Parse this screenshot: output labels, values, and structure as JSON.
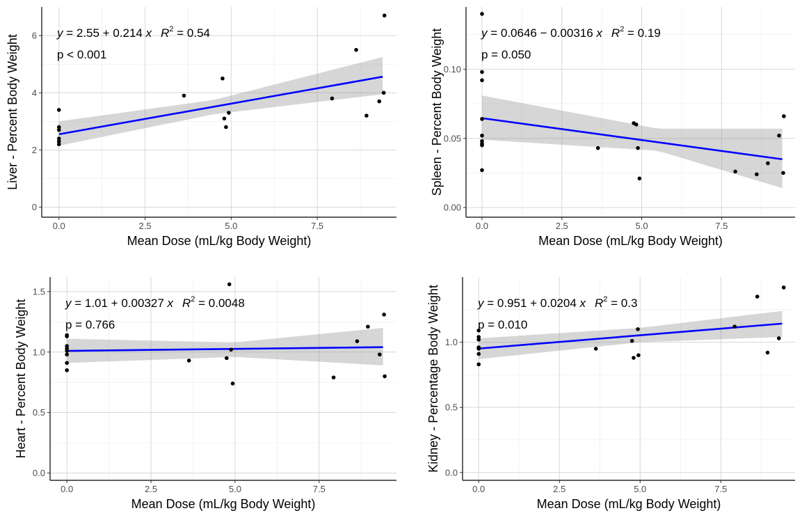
{
  "chart_data": [
    {
      "type": "scatter",
      "xlabel": "Mean Dose (mL/kg Body Weight)",
      "ylabel": "Liver - Percent Body Weight",
      "xlim": [
        -0.5,
        9.8
      ],
      "ylim": [
        -0.35,
        7.0
      ],
      "xticks": [
        0,
        2.5,
        5,
        7.5
      ],
      "xtick_labels": [
        "0.0",
        "2.5",
        "5.0",
        "7.5"
      ],
      "yticks": [
        0,
        2,
        4,
        6
      ],
      "ytick_labels": [
        "0",
        "2",
        "4",
        "6"
      ],
      "grid": true,
      "equation": {
        "y": "y",
        "mid": " = 2.55 + 0.214 ",
        "x": "x",
        "r2": "R",
        "sup": "2",
        "r2val": " = 0.54"
      },
      "pvalue": "p < 0.001",
      "fit": {
        "intercept": 2.55,
        "slope": 0.214
      },
      "ci_band": {
        "x": [
          0,
          4.5,
          9.4
        ],
        "lower": [
          2.15,
          3.25,
          3.95
        ],
        "upper": [
          3.0,
          3.75,
          5.25
        ]
      },
      "points": [
        {
          "x": 0,
          "y": 3.4
        },
        {
          "x": 0,
          "y": 2.8
        },
        {
          "x": 0,
          "y": 2.7
        },
        {
          "x": 0,
          "y": 2.4
        },
        {
          "x": 0,
          "y": 2.3
        },
        {
          "x": 0,
          "y": 2.2
        },
        {
          "x": 3.63,
          "y": 3.9
        },
        {
          "x": 4.75,
          "y": 4.5
        },
        {
          "x": 4.8,
          "y": 3.1
        },
        {
          "x": 4.85,
          "y": 2.8
        },
        {
          "x": 4.93,
          "y": 3.3
        },
        {
          "x": 7.93,
          "y": 3.8
        },
        {
          "x": 8.63,
          "y": 5.5
        },
        {
          "x": 8.93,
          "y": 3.2
        },
        {
          "x": 9.3,
          "y": 3.7
        },
        {
          "x": 9.43,
          "y": 4.0
        },
        {
          "x": 9.45,
          "y": 6.7
        }
      ]
    },
    {
      "type": "scatter",
      "xlabel": "Mean Dose (mL/kg Body Weight)",
      "ylabel": "Spleen - Percent Body Weight",
      "xlim": [
        -0.5,
        9.8
      ],
      "ylim": [
        -0.007,
        0.145
      ],
      "xticks": [
        0,
        2.5,
        5,
        7.5
      ],
      "xtick_labels": [
        "0.0",
        "2.5",
        "5.0",
        "7.5"
      ],
      "yticks": [
        0,
        0.05,
        0.1
      ],
      "ytick_labels": [
        "0.00",
        "0.05",
        "0.10"
      ],
      "grid": true,
      "equation": {
        "y": "y",
        "mid": " = 0.0646 − 0.00316 ",
        "x": "x",
        "r2": "R",
        "sup": "2",
        "r2val": " = 0.19"
      },
      "pvalue": "p = 0.050",
      "fit": {
        "intercept": 0.0646,
        "slope": -0.00316
      },
      "ci_band": {
        "x": [
          0,
          5.5,
          9.4
        ],
        "lower": [
          0.049,
          0.041,
          0.014
        ],
        "upper": [
          0.081,
          0.057,
          0.057
        ]
      },
      "points": [
        {
          "x": 0,
          "y": 0.14
        },
        {
          "x": 0,
          "y": 0.098
        },
        {
          "x": 0,
          "y": 0.092
        },
        {
          "x": 0,
          "y": 0.064
        },
        {
          "x": 0,
          "y": 0.052
        },
        {
          "x": 0,
          "y": 0.048
        },
        {
          "x": 0,
          "y": 0.046
        },
        {
          "x": 0,
          "y": 0.045
        },
        {
          "x": 0,
          "y": 0.027
        },
        {
          "x": 3.63,
          "y": 0.043
        },
        {
          "x": 4.75,
          "y": 0.061
        },
        {
          "x": 4.83,
          "y": 0.06
        },
        {
          "x": 4.88,
          "y": 0.043
        },
        {
          "x": 4.93,
          "y": 0.021
        },
        {
          "x": 7.93,
          "y": 0.026
        },
        {
          "x": 8.6,
          "y": 0.024
        },
        {
          "x": 8.95,
          "y": 0.032
        },
        {
          "x": 9.3,
          "y": 0.052
        },
        {
          "x": 9.43,
          "y": 0.025
        },
        {
          "x": 9.45,
          "y": 0.066
        }
      ]
    },
    {
      "type": "scatter",
      "xlabel": "Mean Dose (mL/kg Body Weight)",
      "ylabel": "Heart - Percent Body Weight",
      "xlim": [
        -0.5,
        9.8
      ],
      "ylim": [
        -0.06,
        1.62
      ],
      "xticks": [
        0,
        2.5,
        5,
        7.5
      ],
      "xtick_labels": [
        "0.0",
        "2.5",
        "5.0",
        "7.5"
      ],
      "yticks": [
        0,
        0.5,
        1.0,
        1.5
      ],
      "ytick_labels": [
        "0.0",
        "0.5",
        "1.0",
        "1.5"
      ],
      "grid": true,
      "equation": {
        "y": "y",
        "mid": " = 1.01 + 0.00327 ",
        "x": "x",
        "r2": "R",
        "sup": "2",
        "r2val": " = 0.0048"
      },
      "pvalue": "p = 0.766",
      "fit": {
        "intercept": 1.01,
        "slope": 0.00327
      },
      "ci_band": {
        "x": [
          0,
          5.0,
          9.4
        ],
        "lower": [
          0.91,
          0.96,
          0.89
        ],
        "upper": [
          1.11,
          1.08,
          1.2
        ]
      },
      "points": [
        {
          "x": 0,
          "y": 1.14
        },
        {
          "x": 0,
          "y": 1.13
        },
        {
          "x": 0,
          "y": 1.05
        },
        {
          "x": 0,
          "y": 1.03
        },
        {
          "x": 0,
          "y": 1.01
        },
        {
          "x": 0,
          "y": 0.98
        },
        {
          "x": 0,
          "y": 0.91
        },
        {
          "x": 0,
          "y": 0.85
        },
        {
          "x": 3.63,
          "y": 0.93
        },
        {
          "x": 4.75,
          "y": 0.95
        },
        {
          "x": 4.83,
          "y": 1.56
        },
        {
          "x": 4.88,
          "y": 1.02
        },
        {
          "x": 4.93,
          "y": 0.74
        },
        {
          "x": 7.93,
          "y": 0.79
        },
        {
          "x": 8.63,
          "y": 1.09
        },
        {
          "x": 8.95,
          "y": 1.21
        },
        {
          "x": 9.3,
          "y": 0.98
        },
        {
          "x": 9.43,
          "y": 1.31
        },
        {
          "x": 9.45,
          "y": 0.8
        }
      ]
    },
    {
      "type": "scatter",
      "xlabel": "Mean Dose (mL/kg Body Weight)",
      "ylabel": "Kidney - Percentage Body Weight",
      "xlim": [
        -0.5,
        9.8
      ],
      "ylim": [
        -0.06,
        1.5
      ],
      "xticks": [
        0,
        2.5,
        5,
        7.5
      ],
      "xtick_labels": [
        "0.0",
        "2.5",
        "5.0",
        "7.5"
      ],
      "yticks": [
        0,
        0.5,
        1.0
      ],
      "ytick_labels": [
        "0.0",
        "0.5",
        "1.0"
      ],
      "grid": true,
      "equation": {
        "y": "y",
        "mid": " = 0.951 + 0.0204 ",
        "x": "x",
        "r2": "R",
        "sup": "2",
        "r2val": " = 0.3"
      },
      "pvalue": "p = 0.010",
      "fit": {
        "intercept": 0.951,
        "slope": 0.0204
      },
      "ci_band": {
        "x": [
          0,
          5.0,
          9.4
        ],
        "lower": [
          0.87,
          1.0,
          1.04
        ],
        "upper": [
          1.03,
          1.11,
          1.24
        ]
      },
      "points": [
        {
          "x": 0,
          "y": 1.09
        },
        {
          "x": 0,
          "y": 1.04
        },
        {
          "x": 0,
          "y": 1.02
        },
        {
          "x": 0,
          "y": 0.96
        },
        {
          "x": 0,
          "y": 0.95
        },
        {
          "x": 0,
          "y": 0.91
        },
        {
          "x": 0,
          "y": 0.83
        },
        {
          "x": 3.63,
          "y": 0.95
        },
        {
          "x": 4.75,
          "y": 1.01
        },
        {
          "x": 4.8,
          "y": 0.88
        },
        {
          "x": 4.93,
          "y": 1.1
        },
        {
          "x": 4.95,
          "y": 0.9
        },
        {
          "x": 7.93,
          "y": 1.12
        },
        {
          "x": 8.63,
          "y": 1.35
        },
        {
          "x": 8.95,
          "y": 0.92
        },
        {
          "x": 9.3,
          "y": 1.03
        },
        {
          "x": 9.45,
          "y": 1.42
        }
      ]
    }
  ]
}
